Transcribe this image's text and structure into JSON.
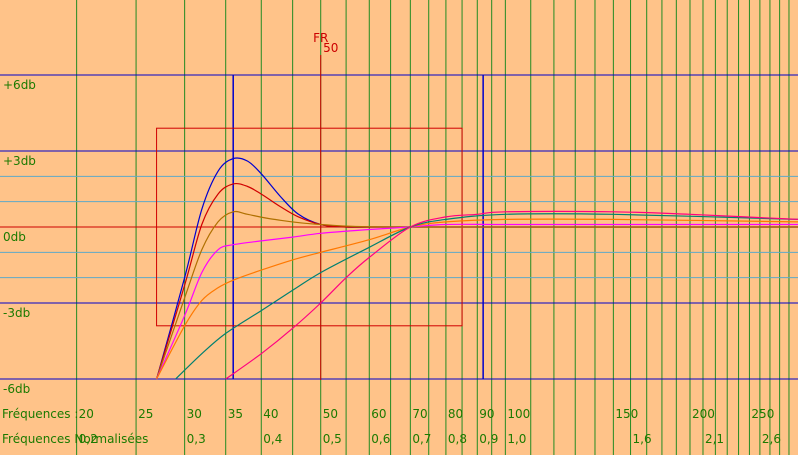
{
  "chart_data": {
    "type": "line",
    "x_scale": "log",
    "xlim": [
      15,
      300
    ],
    "ylim": [
      -6,
      6
    ],
    "y_labels": [
      {
        "value": 6,
        "label": "+6db"
      },
      {
        "value": 3,
        "label": "+3db"
      },
      {
        "value": 0,
        "label": "0db"
      },
      {
        "value": -3,
        "label": "-3db"
      },
      {
        "value": -6,
        "label": "-6db"
      }
    ],
    "y_minor_lines": [
      2,
      1,
      -1,
      -2
    ],
    "row_frequencies": {
      "label": "Fréquences :",
      "ticks": [
        {
          "x": 20,
          "label": "20"
        },
        {
          "x": 25,
          "label": "25"
        },
        {
          "x": 30,
          "label": "30"
        },
        {
          "x": 35,
          "label": "35"
        },
        {
          "x": 40,
          "label": "40"
        },
        {
          "x": 50,
          "label": "50"
        },
        {
          "x": 60,
          "label": "60"
        },
        {
          "x": 70,
          "label": "70"
        },
        {
          "x": 80,
          "label": "80"
        },
        {
          "x": 90,
          "label": "90"
        },
        {
          "x": 100,
          "label": "100"
        },
        {
          "x": 150,
          "label": "150"
        },
        {
          "x": 200,
          "label": "200"
        },
        {
          "x": 250,
          "label": "250"
        }
      ]
    },
    "row_normalized": {
      "label": "Fréquences Normalisées",
      "ticks": [
        {
          "x": 20,
          "label": "0,2"
        },
        {
          "x": 30,
          "label": "0,3"
        },
        {
          "x": 40,
          "label": "0,4"
        },
        {
          "x": 50,
          "label": "0,5"
        },
        {
          "x": 60,
          "label": "0,6"
        },
        {
          "x": 70,
          "label": "0,7"
        },
        {
          "x": 80,
          "label": "0,8"
        },
        {
          "x": 90,
          "label": "0,9"
        },
        {
          "x": 100,
          "label": "1,0"
        },
        {
          "x": 160,
          "label": "1,6"
        },
        {
          "x": 210,
          "label": "2,1"
        },
        {
          "x": 260,
          "label": "2,6"
        }
      ]
    },
    "fr": {
      "label": "FR",
      "value": "50",
      "x": 50
    },
    "markers": [
      36,
      92
    ],
    "box": {
      "x": [
        27,
        85
      ],
      "y": [
        -3.9,
        3.9
      ]
    },
    "series": [
      {
        "color": "#0000d0",
        "points": [
          [
            27,
            -6
          ],
          [
            30,
            -2
          ],
          [
            32,
            0.7
          ],
          [
            34,
            2.2
          ],
          [
            36,
            2.7
          ],
          [
            38,
            2.6
          ],
          [
            40,
            2.1
          ],
          [
            43,
            1.2
          ],
          [
            46,
            0.5
          ],
          [
            50,
            0.1
          ],
          [
            55,
            0
          ],
          [
            60,
            0
          ],
          [
            70,
            0
          ],
          [
            90,
            0
          ],
          [
            150,
            0
          ],
          [
            300,
            0
          ]
        ]
      },
      {
        "color": "#d00000",
        "points": [
          [
            27,
            -6
          ],
          [
            30,
            -2.3
          ],
          [
            32,
            0.1
          ],
          [
            34,
            1.3
          ],
          [
            36,
            1.7
          ],
          [
            38,
            1.6
          ],
          [
            40,
            1.3
          ],
          [
            43,
            0.8
          ],
          [
            46,
            0.4
          ],
          [
            50,
            0.1
          ],
          [
            55,
            0
          ],
          [
            70,
            0
          ],
          [
            300,
            0
          ]
        ]
      },
      {
        "color": "#b07000",
        "points": [
          [
            27,
            -6
          ],
          [
            30,
            -2.8
          ],
          [
            32,
            -0.9
          ],
          [
            34,
            0.2
          ],
          [
            36,
            0.6
          ],
          [
            38,
            0.5
          ],
          [
            42,
            0.3
          ],
          [
            50,
            0.1
          ],
          [
            70,
            0
          ],
          [
            300,
            0
          ]
        ]
      },
      {
        "color": "#ff00ff",
        "points": [
          [
            27,
            -6
          ],
          [
            30,
            -3.5
          ],
          [
            32,
            -1.8
          ],
          [
            34,
            -0.9
          ],
          [
            36,
            -0.7
          ],
          [
            40,
            -0.55
          ],
          [
            45,
            -0.4
          ],
          [
            50,
            -0.25
          ],
          [
            60,
            -0.1
          ],
          [
            70,
            0
          ],
          [
            80,
            0.1
          ],
          [
            100,
            0.1
          ],
          [
            150,
            0.1
          ],
          [
            300,
            0.1
          ]
        ]
      },
      {
        "color": "#ff7800",
        "points": [
          [
            27,
            -6
          ],
          [
            30,
            -3.9
          ],
          [
            32,
            -2.9
          ],
          [
            34,
            -2.4
          ],
          [
            36,
            -2.1
          ],
          [
            40,
            -1.7
          ],
          [
            45,
            -1.3
          ],
          [
            50,
            -1
          ],
          [
            60,
            -0.5
          ],
          [
            70,
            0
          ],
          [
            80,
            0.2
          ],
          [
            100,
            0.3
          ],
          [
            150,
            0.3
          ],
          [
            300,
            0.2
          ]
        ]
      },
      {
        "color": "#008070",
        "points": [
          [
            29,
            -6
          ],
          [
            32,
            -5
          ],
          [
            35,
            -4.2
          ],
          [
            40,
            -3.3
          ],
          [
            45,
            -2.5
          ],
          [
            50,
            -1.8
          ],
          [
            60,
            -0.8
          ],
          [
            70,
            0
          ],
          [
            80,
            0.3
          ],
          [
            100,
            0.5
          ],
          [
            150,
            0.5
          ],
          [
            300,
            0.3
          ]
        ]
      },
      {
        "color": "#ff0080",
        "points": [
          [
            35,
            -6
          ],
          [
            40,
            -5
          ],
          [
            45,
            -4
          ],
          [
            50,
            -3
          ],
          [
            55,
            -2
          ],
          [
            60,
            -1.2
          ],
          [
            70,
            0
          ],
          [
            80,
            0.4
          ],
          [
            90,
            0.5
          ],
          [
            100,
            0.6
          ],
          [
            150,
            0.6
          ],
          [
            200,
            0.5
          ],
          [
            300,
            0.3
          ]
        ]
      }
    ]
  }
}
